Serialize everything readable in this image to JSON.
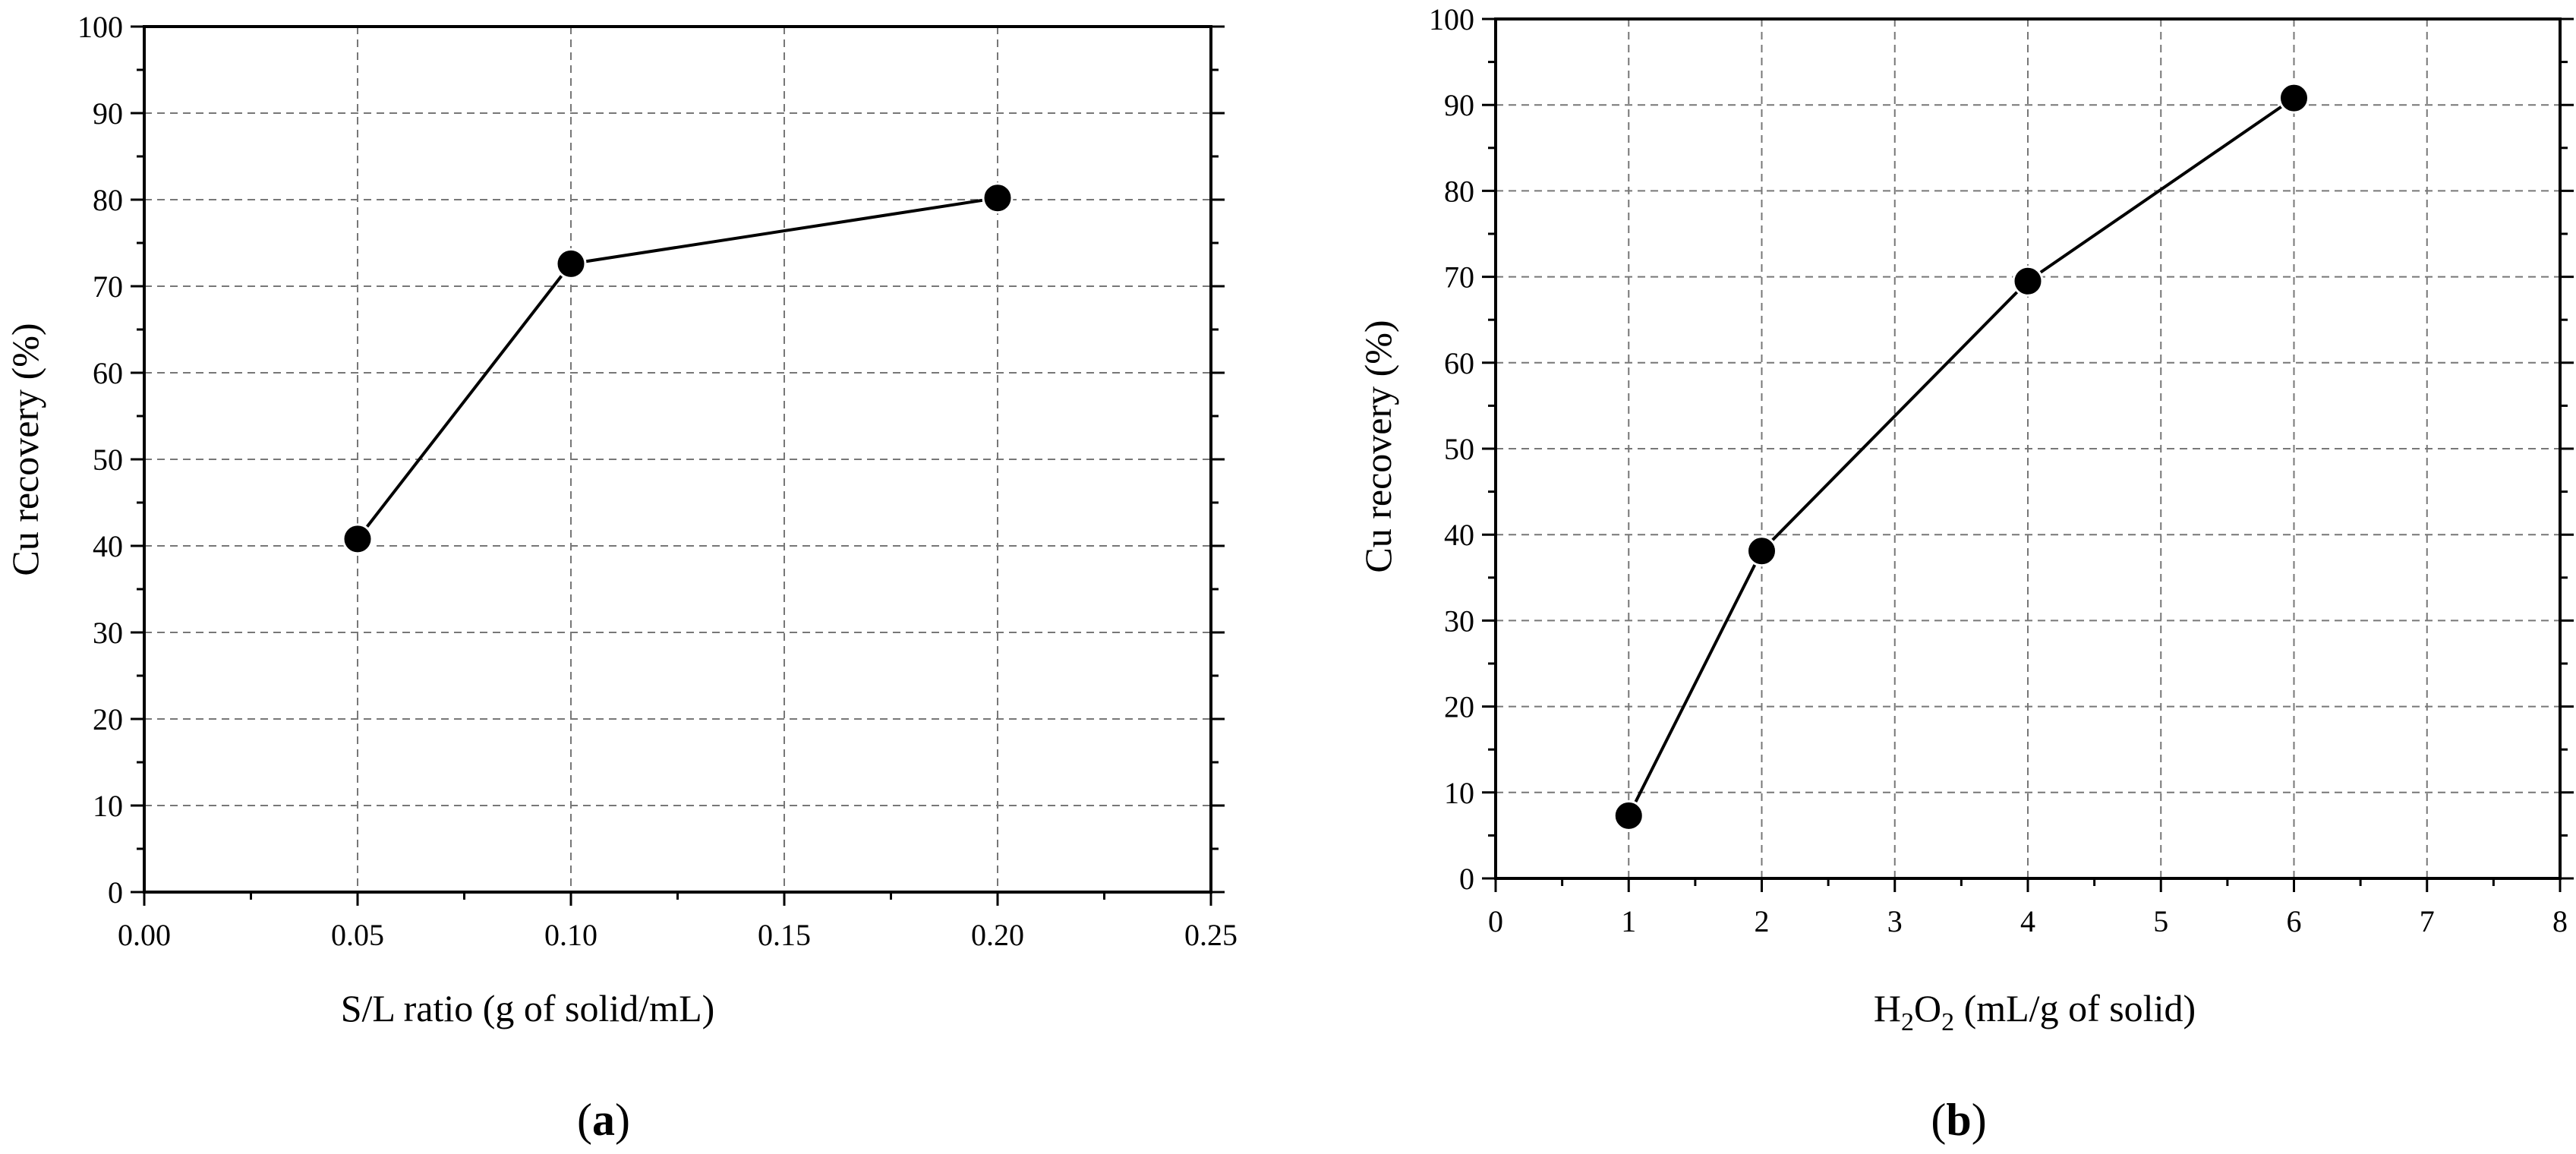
{
  "chart_data": [
    {
      "type": "line",
      "panel_label": "a",
      "xlabel": "S/L ratio (g of solid/mL)",
      "ylabel": "Cu recovery (%)",
      "xlim": [
        0,
        0.25
      ],
      "ylim": [
        0,
        100
      ],
      "xticks": [
        "0.00",
        "0.05",
        "0.10",
        "0.15",
        "0.20",
        "0.25"
      ],
      "yticks": [
        "0",
        "10",
        "20",
        "30",
        "40",
        "50",
        "60",
        "70",
        "80",
        "90",
        "100"
      ],
      "grid": true,
      "series": [
        {
          "name": "Cu recovery",
          "x": [
            0.05,
            0.1,
            0.2
          ],
          "y": [
            40.8,
            72.6,
            80.2
          ]
        }
      ]
    },
    {
      "type": "line",
      "panel_label": "b",
      "xlabel_main": "H",
      "xlabel_sub1": "2",
      "xlabel_mid": "O",
      "xlabel_sub2": "2",
      "xlabel_rest": " (mL/g of solid)",
      "ylabel": "Cu recovery (%)",
      "xlim": [
        0,
        8
      ],
      "ylim": [
        0,
        100
      ],
      "xticks": [
        "0",
        "1",
        "2",
        "3",
        "4",
        "5",
        "6",
        "7",
        "8"
      ],
      "yticks": [
        "0",
        "10",
        "20",
        "30",
        "40",
        "50",
        "60",
        "70",
        "80",
        "90",
        "100"
      ],
      "grid": true,
      "series": [
        {
          "name": "Cu recovery",
          "x": [
            1,
            2,
            4,
            6
          ],
          "y": [
            7.3,
            38.1,
            69.5,
            90.8
          ]
        }
      ]
    }
  ]
}
